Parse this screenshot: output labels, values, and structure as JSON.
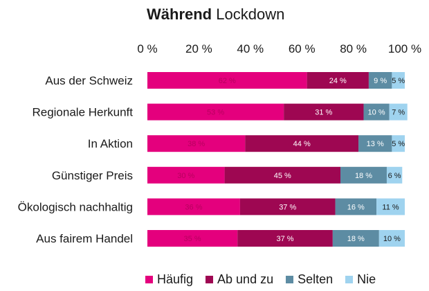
{
  "chart_data": {
    "type": "bar",
    "orientation": "horizontal-stacked-100",
    "title_bold": "Während",
    "title_rest": "Lockdown",
    "categories": [
      "Aus der Schweiz",
      "Regionale Herkunft",
      "In Aktion",
      "Günstiger Preis",
      "Ökologisch nachhaltig",
      "Aus fairem Handel"
    ],
    "series": [
      {
        "name": "Häufig",
        "color": "#e4007d",
        "label_color": "#b8005f",
        "values": [
          62,
          53,
          38,
          30,
          36,
          35
        ]
      },
      {
        "name": "Ab und zu",
        "color": "#9e0752",
        "label_color": "#ffffff",
        "values": [
          24,
          31,
          44,
          45,
          37,
          37
        ]
      },
      {
        "name": "Selten",
        "color": "#5d8ca3",
        "label_color": "#ffffff",
        "values": [
          9,
          10,
          13,
          18,
          16,
          18
        ]
      },
      {
        "name": "Nie",
        "color": "#9fd3ef",
        "label_color": "#1a1a1a",
        "values": [
          5,
          7,
          5,
          6,
          11,
          10
        ]
      }
    ],
    "value_suffix": " %",
    "xlim": [
      0,
      100
    ],
    "xticks": [
      "0 %",
      "20 %",
      "40 %",
      "60 %",
      "80 %",
      "100 %"
    ],
    "grid": false,
    "legend_position": "bottom"
  }
}
